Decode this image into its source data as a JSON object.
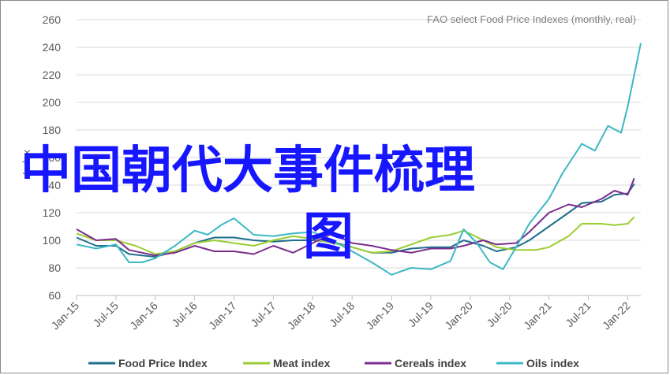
{
  "chart_data": {
    "type": "line",
    "subtitle": "FAO select Food Price Indexes (monthly, real)",
    "ylabel": "Index",
    "ylim": [
      60,
      260
    ],
    "yticks": [
      60,
      80,
      100,
      120,
      140,
      160,
      180,
      200,
      220,
      240,
      260
    ],
    "xlim": [
      "Jan-15",
      "Mar-22"
    ],
    "xtick_labels": [
      "Jan-15",
      "Jul-15",
      "Jan-16",
      "Jul-16",
      "Jan-17",
      "Jul-17",
      "Jan-18",
      "Jul-18",
      "Jan-19",
      "Jul-19",
      "Jan-20",
      "Jul-20",
      "Jan-21",
      "Jul-21",
      "Jan-22"
    ],
    "grid": "horizontal",
    "legend_position": "bottom",
    "overlay_text": [
      "中国朝代大事件梳理",
      "图"
    ],
    "series": [
      {
        "name": "Food Price Index",
        "color": "#1f6e8c",
        "points": [
          [
            "Jan-15",
            102
          ],
          [
            "Apr-15",
            96
          ],
          [
            "Jul-15",
            96
          ],
          [
            "Sep-15",
            90
          ],
          [
            "Jan-16",
            88
          ],
          [
            "Apr-16",
            92
          ],
          [
            "Jul-16",
            98
          ],
          [
            "Oct-16",
            102
          ],
          [
            "Jan-17",
            102
          ],
          [
            "Apr-17",
            100
          ],
          [
            "Jul-17",
            99
          ],
          [
            "Oct-17",
            100
          ],
          [
            "Jan-18",
            100
          ],
          [
            "Apr-18",
            99
          ],
          [
            "Jul-18",
            95
          ],
          [
            "Oct-18",
            91
          ],
          [
            "Jan-19",
            91
          ],
          [
            "Apr-19",
            94
          ],
          [
            "Jul-19",
            95
          ],
          [
            "Oct-19",
            95
          ],
          [
            "Dec-19",
            100
          ],
          [
            "Mar-20",
            96
          ],
          [
            "May-20",
            92
          ],
          [
            "Aug-20",
            95
          ],
          [
            "Oct-20",
            100
          ],
          [
            "Jan-21",
            110
          ],
          [
            "Apr-21",
            120
          ],
          [
            "Jun-21",
            127
          ],
          [
            "Sep-21",
            128
          ],
          [
            "Nov-21",
            133
          ],
          [
            "Jan-22",
            134
          ],
          [
            "Feb-22",
            141
          ]
        ]
      },
      {
        "name": "Meat index",
        "color": "#9acd32",
        "points": [
          [
            "Jan-15",
            105
          ],
          [
            "Apr-15",
            100
          ],
          [
            "Jul-15",
            100
          ],
          [
            "Oct-15",
            96
          ],
          [
            "Jan-16",
            90
          ],
          [
            "Apr-16",
            92
          ],
          [
            "Jul-16",
            98
          ],
          [
            "Oct-16",
            100
          ],
          [
            "Jan-17",
            98
          ],
          [
            "Apr-17",
            96
          ],
          [
            "Jul-17",
            100
          ],
          [
            "Oct-17",
            103
          ],
          [
            "Jan-18",
            101
          ],
          [
            "Apr-18",
            98
          ],
          [
            "Jul-18",
            95
          ],
          [
            "Oct-18",
            91
          ],
          [
            "Jan-19",
            92
          ],
          [
            "Apr-19",
            97
          ],
          [
            "Jul-19",
            102
          ],
          [
            "Oct-19",
            104
          ],
          [
            "Dec-19",
            107
          ],
          [
            "Mar-20",
            100
          ],
          [
            "May-20",
            95
          ],
          [
            "Aug-20",
            93
          ],
          [
            "Nov-20",
            93
          ],
          [
            "Jan-21",
            95
          ],
          [
            "Apr-21",
            103
          ],
          [
            "Jun-21",
            112
          ],
          [
            "Sep-21",
            112
          ],
          [
            "Nov-21",
            111
          ],
          [
            "Jan-22",
            112
          ],
          [
            "Feb-22",
            117
          ]
        ]
      },
      {
        "name": "Cereals index",
        "color": "#7b2d8e",
        "points": [
          [
            "Jan-15",
            108
          ],
          [
            "Apr-15",
            100
          ],
          [
            "Jul-15",
            101
          ],
          [
            "Sep-15",
            93
          ],
          [
            "Jan-16",
            89
          ],
          [
            "Apr-16",
            91
          ],
          [
            "Jul-16",
            96
          ],
          [
            "Oct-16",
            92
          ],
          [
            "Jan-17",
            92
          ],
          [
            "Apr-17",
            90
          ],
          [
            "Jul-17",
            96
          ],
          [
            "Oct-17",
            91
          ],
          [
            "Jan-18",
            98
          ],
          [
            "Apr-18",
            105
          ],
          [
            "Jul-18",
            98
          ],
          [
            "Oct-18",
            96
          ],
          [
            "Jan-19",
            93
          ],
          [
            "Apr-19",
            91
          ],
          [
            "Jul-19",
            94
          ],
          [
            "Oct-19",
            94
          ],
          [
            "Dec-19",
            96
          ],
          [
            "Mar-20",
            100
          ],
          [
            "May-20",
            97
          ],
          [
            "Aug-20",
            98
          ],
          [
            "Oct-20",
            106
          ],
          [
            "Jan-21",
            120
          ],
          [
            "Apr-21",
            126
          ],
          [
            "Jun-21",
            124
          ],
          [
            "Sep-21",
            130
          ],
          [
            "Nov-21",
            136
          ],
          [
            "Jan-22",
            133
          ],
          [
            "Feb-22",
            145
          ]
        ]
      },
      {
        "name": "Oils index",
        "color": "#3bb8c3",
        "points": [
          [
            "Jan-15",
            97
          ],
          [
            "Apr-15",
            94
          ],
          [
            "Jul-15",
            97
          ],
          [
            "Sep-15",
            84
          ],
          [
            "Nov-15",
            84
          ],
          [
            "Jan-16",
            87
          ],
          [
            "Apr-16",
            96
          ],
          [
            "Jul-16",
            107
          ],
          [
            "Sep-16",
            104
          ],
          [
            "Nov-16",
            111
          ],
          [
            "Jan-17",
            116
          ],
          [
            "Apr-17",
            104
          ],
          [
            "Jul-17",
            103
          ],
          [
            "Oct-17",
            105
          ],
          [
            "Jan-18",
            106
          ],
          [
            "Apr-18",
            100
          ],
          [
            "Jul-18",
            92
          ],
          [
            "Oct-18",
            84
          ],
          [
            "Jan-19",
            75
          ],
          [
            "Apr-19",
            80
          ],
          [
            "Jul-19",
            79
          ],
          [
            "Oct-19",
            85
          ],
          [
            "Dec-19",
            108
          ],
          [
            "Feb-20",
            98
          ],
          [
            "Apr-20",
            84
          ],
          [
            "Jun-20",
            79
          ],
          [
            "Aug-20",
            95
          ],
          [
            "Oct-20",
            112
          ],
          [
            "Jan-21",
            130
          ],
          [
            "Mar-21",
            148
          ],
          [
            "Jun-21",
            170
          ],
          [
            "Aug-21",
            165
          ],
          [
            "Oct-21",
            183
          ],
          [
            "Dec-21",
            178
          ],
          [
            "Jan-22",
            197
          ],
          [
            "Mar-22",
            243
          ]
        ]
      }
    ]
  }
}
